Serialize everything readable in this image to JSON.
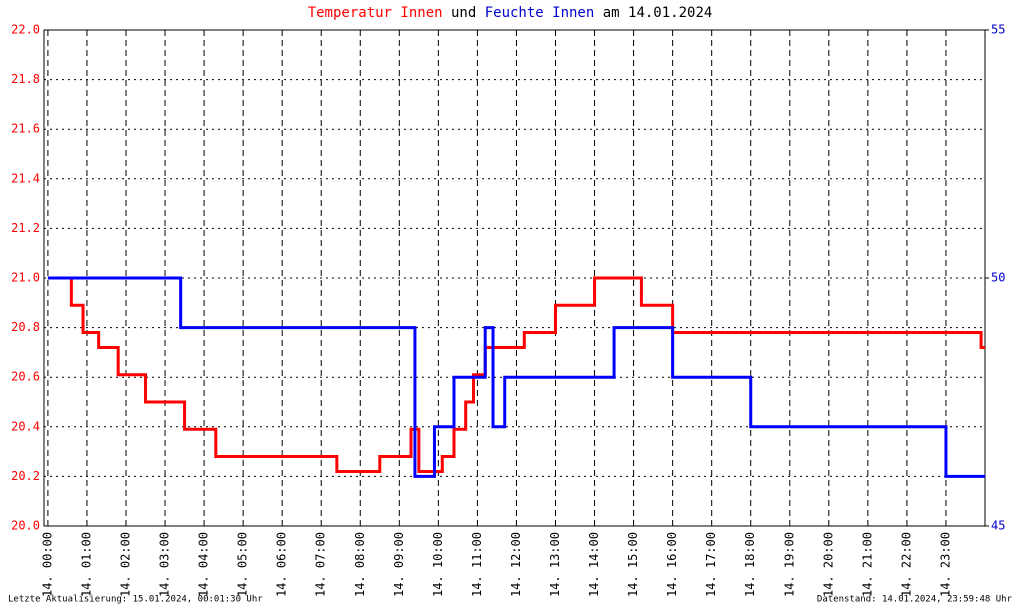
{
  "chart_data": {
    "type": "line",
    "title_parts": [
      {
        "text": "Temperatur Innen",
        "color": "#ff0000"
      },
      {
        "text": "und",
        "color": "#000000"
      },
      {
        "text": "Feuchte Innen",
        "color": "#0000cc"
      },
      {
        "text": "am 14.01.2024",
        "color": "#000000"
      }
    ],
    "footer_left": "Letzte Aktualisierung: 15.01.2024, 00:01:30 Uhr",
    "footer_right": "Datenstand: 14.01.2024, 23:59:48 Uhr",
    "xlim": [
      -0.1,
      24
    ],
    "xticks": [
      {
        "value": 0,
        "label": "14. 00:00"
      },
      {
        "value": 1,
        "label": "14. 01:00"
      },
      {
        "value": 2,
        "label": "14. 02:00"
      },
      {
        "value": 3,
        "label": "14. 03:00"
      },
      {
        "value": 4,
        "label": "14. 04:00"
      },
      {
        "value": 5,
        "label": "14. 05:00"
      },
      {
        "value": 6,
        "label": "14. 06:00"
      },
      {
        "value": 7,
        "label": "14. 07:00"
      },
      {
        "value": 8,
        "label": "14. 08:00"
      },
      {
        "value": 9,
        "label": "14. 09:00"
      },
      {
        "value": 10,
        "label": "14. 10:00"
      },
      {
        "value": 11,
        "label": "14. 11:00"
      },
      {
        "value": 12,
        "label": "14. 12:00"
      },
      {
        "value": 13,
        "label": "14. 13:00"
      },
      {
        "value": 14,
        "label": "14. 14:00"
      },
      {
        "value": 15,
        "label": "14. 15:00"
      },
      {
        "value": 16,
        "label": "14. 16:00"
      },
      {
        "value": 17,
        "label": "14. 17:00"
      },
      {
        "value": 18,
        "label": "14. 18:00"
      },
      {
        "value": 19,
        "label": "14. 19:00"
      },
      {
        "value": 20,
        "label": "14. 20:00"
      },
      {
        "value": 21,
        "label": "14. 21:00"
      },
      {
        "value": 22,
        "label": "14. 22:00"
      },
      {
        "value": 23,
        "label": "14. 23:00"
      }
    ],
    "ylim": [
      20,
      22
    ],
    "yticks": [
      {
        "value": 20,
        "label": "20.0"
      },
      20.2,
      20.4,
      20.6,
      20.8,
      {
        "value": 21,
        "label": "21.0"
      },
      21.2,
      21.4,
      21.6,
      21.8,
      {
        "value": 22,
        "label": "22.0"
      }
    ],
    "y2lim": [
      45,
      55
    ],
    "y2ticks": [
      45,
      50,
      55
    ],
    "grid": true,
    "series": [
      {
        "name": "Temperatur Innen",
        "color": "#ff0000",
        "x": [
          0,
          0.6,
          0.6,
          0.9,
          0.9,
          1.3,
          1.3,
          1.8,
          1.8,
          2.5,
          2.5,
          3.5,
          3.5,
          4.3,
          4.3,
          7.4,
          7.4,
          8.5,
          8.5,
          9.3,
          9.3,
          9.5,
          9.5,
          10.1,
          10.1,
          10.4,
          10.4,
          10.7,
          10.7,
          10.9,
          10.9,
          11.2,
          11.2,
          12.2,
          12.2,
          13,
          13,
          14,
          14,
          15.2,
          15.2,
          16,
          16,
          23.9,
          23.9,
          24
        ],
        "values": [
          21,
          21,
          20.89,
          20.89,
          20.78,
          20.78,
          20.72,
          20.72,
          20.61,
          20.61,
          20.5,
          20.5,
          20.39,
          20.39,
          20.28,
          20.28,
          20.22,
          20.22,
          20.28,
          20.28,
          20.39,
          20.39,
          20.22,
          20.22,
          20.28,
          20.28,
          20.39,
          20.39,
          20.5,
          20.5,
          20.61,
          20.61,
          20.72,
          20.72,
          20.78,
          20.78,
          20.89,
          20.89,
          21,
          21,
          20.89,
          20.89,
          20.78,
          20.78,
          20.72,
          20.72
        ]
      },
      {
        "name": "Feuchte Innen",
        "color": "#0000ff",
        "axis": "y2",
        "x": [
          0,
          3.4,
          3.4,
          9.4,
          9.4,
          9.9,
          9.9,
          10.4,
          10.4,
          11.2,
          11.2,
          11.4,
          11.4,
          11.7,
          11.7,
          14.5,
          14.5,
          16,
          16,
          18,
          18,
          23,
          23,
          24
        ],
        "values": [
          50,
          50,
          49,
          49,
          46,
          46,
          47,
          47,
          48,
          48,
          49,
          49,
          47,
          47,
          48,
          48,
          49,
          49,
          48,
          48,
          47,
          47,
          46,
          46
        ]
      }
    ]
  }
}
